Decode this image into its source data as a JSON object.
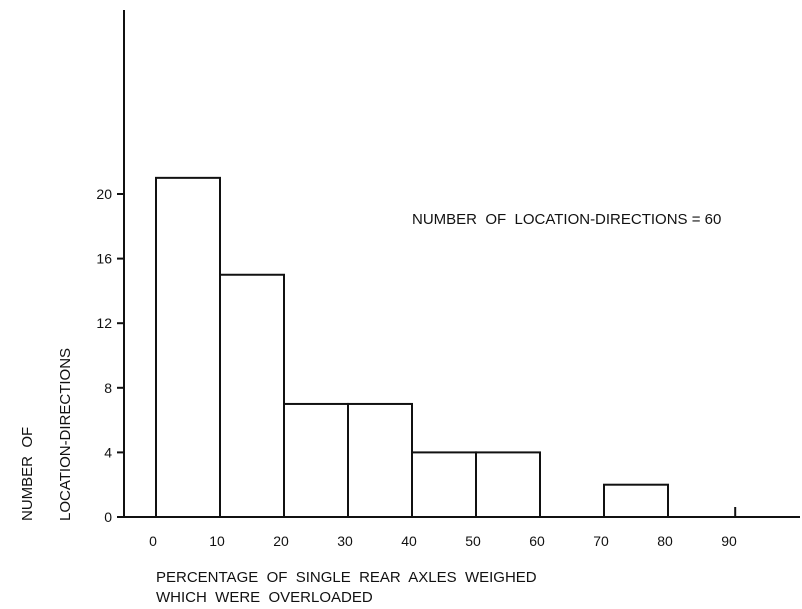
{
  "chart_data": {
    "type": "bar",
    "histogram": true,
    "bins": [
      {
        "start": 0,
        "end": 10,
        "value": 21
      },
      {
        "start": 10,
        "end": 20,
        "value": 15
      },
      {
        "start": 20,
        "end": 30,
        "value": 7
      },
      {
        "start": 30,
        "end": 40,
        "value": 7
      },
      {
        "start": 40,
        "end": 50,
        "value": 4
      },
      {
        "start": 50,
        "end": 60,
        "value": 4
      },
      {
        "start": 60,
        "end": 70,
        "value": 0
      },
      {
        "start": 70,
        "end": 80,
        "value": 2
      },
      {
        "start": 80,
        "end": 90,
        "value": 0
      }
    ],
    "x_ticks": [
      "0",
      "10",
      "20",
      "30",
      "40",
      "50",
      "60",
      "70",
      "80",
      "90"
    ],
    "y_ticks": [
      "0",
      "4",
      "8",
      "12",
      "16",
      "20"
    ],
    "xlim": [
      0,
      100
    ],
    "ylim": [
      0,
      30
    ],
    "xlabel_line1": "PERCENTAGE  OF  SINGLE  REAR  AXLES  WEIGHED",
    "xlabel_line2": "WHICH  WERE  OVERLOADED",
    "ylabel_line1": "NUMBER  OF",
    "ylabel_line2": "LOCATION-DIRECTIONS",
    "annotation": "NUMBER  OF  LOCATION-DIRECTIONS = 60",
    "grid": false
  }
}
